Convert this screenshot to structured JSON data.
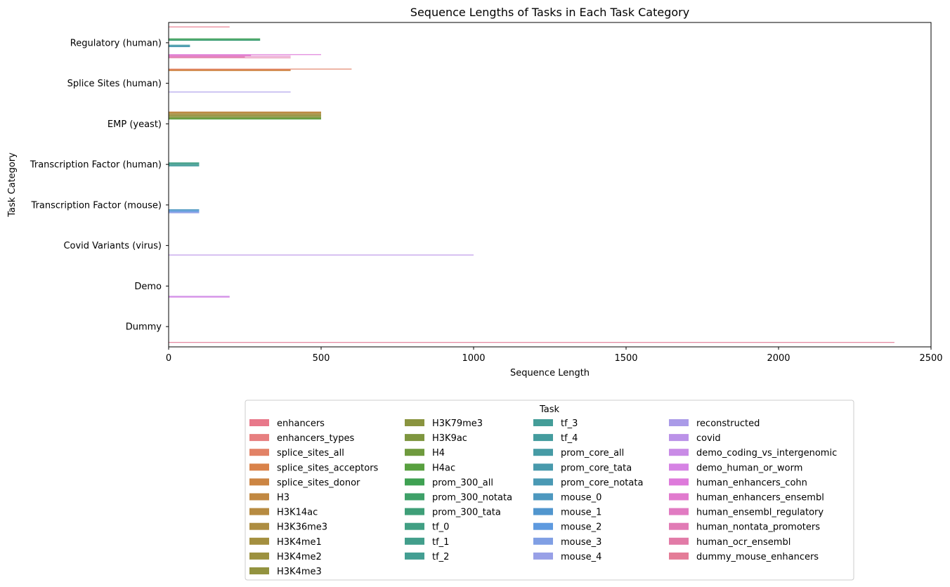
{
  "chart_data": {
    "type": "bar",
    "orientation": "horizontal",
    "title": "Sequence Lengths of Tasks in Each Task Category",
    "xlabel": "Sequence Length",
    "ylabel": "Task Category",
    "xlim": [
      0,
      2500
    ],
    "xticks": [
      0,
      500,
      1000,
      1500,
      2000,
      2500
    ],
    "grid": false,
    "legend_placement": "below",
    "legend_title": "Task",
    "categories": [
      "Regulatory (human)",
      "Splice Sites (human)",
      "EMP (yeast)",
      "Transcription Factor (human)",
      "Transcription Factor (mouse)",
      "Covid Variants (virus)",
      "Demo",
      "Dummy"
    ],
    "series": [
      {
        "name": "enhancers",
        "color": "#e8788a",
        "values": [
          200,
          null,
          null,
          null,
          null,
          null,
          null,
          null
        ]
      },
      {
        "name": "enhancers_types",
        "color": "#e77f80",
        "values": [
          null,
          null,
          null,
          null,
          null,
          null,
          null,
          null
        ]
      },
      {
        "name": "splice_sites_all",
        "color": "#e28266",
        "values": [
          null,
          600,
          null,
          null,
          null,
          null,
          null,
          null
        ]
      },
      {
        "name": "splice_sites_acceptors",
        "color": "#d9824a",
        "values": [
          null,
          400,
          null,
          null,
          null,
          null,
          null,
          null
        ]
      },
      {
        "name": "splice_sites_donor",
        "color": "#cc8543",
        "values": [
          null,
          400,
          null,
          null,
          null,
          null,
          null,
          null
        ]
      },
      {
        "name": "H3",
        "color": "#c18841",
        "values": [
          null,
          null,
          500,
          null,
          null,
          null,
          null,
          null
        ]
      },
      {
        "name": "H3K14ac",
        "color": "#b78b41",
        "values": [
          null,
          null,
          500,
          null,
          null,
          null,
          null,
          null
        ]
      },
      {
        "name": "H3K36me3",
        "color": "#ad8d41",
        "values": [
          null,
          null,
          500,
          null,
          null,
          null,
          null,
          null
        ]
      },
      {
        "name": "H3K4me1",
        "color": "#a48f3f",
        "values": [
          null,
          null,
          500,
          null,
          null,
          null,
          null,
          null
        ]
      },
      {
        "name": "H3K4me2",
        "color": "#9c913f",
        "values": [
          null,
          null,
          500,
          null,
          null,
          null,
          null,
          null
        ]
      },
      {
        "name": "H3K4me3",
        "color": "#93933f",
        "values": [
          null,
          null,
          500,
          null,
          null,
          null,
          null,
          null
        ]
      },
      {
        "name": "H3K79me3",
        "color": "#8a943f",
        "values": [
          null,
          null,
          500,
          null,
          null,
          null,
          null,
          null
        ]
      },
      {
        "name": "H3K9ac",
        "color": "#7e963f",
        "values": [
          null,
          null,
          500,
          null,
          null,
          null,
          null,
          null
        ]
      },
      {
        "name": "H4",
        "color": "#6f9a3e",
        "values": [
          null,
          null,
          500,
          null,
          null,
          null,
          null,
          null
        ]
      },
      {
        "name": "H4ac",
        "color": "#58a03f",
        "values": [
          null,
          null,
          500,
          null,
          null,
          null,
          null,
          null
        ]
      },
      {
        "name": "prom_300_all",
        "color": "#3fa152",
        "values": [
          300,
          null,
          null,
          null,
          null,
          null,
          null,
          null
        ]
      },
      {
        "name": "prom_300_notata",
        "color": "#3ea068",
        "values": [
          300,
          null,
          null,
          null,
          null,
          null,
          null,
          null
        ]
      },
      {
        "name": "prom_300_tata",
        "color": "#3f9f78",
        "values": [
          300,
          null,
          null,
          null,
          null,
          null,
          null,
          null
        ]
      },
      {
        "name": "tf_0",
        "color": "#419f83",
        "values": [
          null,
          null,
          null,
          100,
          null,
          null,
          null,
          null
        ]
      },
      {
        "name": "tf_1",
        "color": "#429e8b",
        "values": [
          null,
          null,
          null,
          100,
          null,
          null,
          null,
          null
        ]
      },
      {
        "name": "tf_2",
        "color": "#439e92",
        "values": [
          null,
          null,
          null,
          100,
          null,
          null,
          null,
          null
        ]
      },
      {
        "name": "tf_3",
        "color": "#449d98",
        "values": [
          null,
          null,
          null,
          100,
          null,
          null,
          null,
          null
        ]
      },
      {
        "name": "tf_4",
        "color": "#449c9e",
        "values": [
          null,
          null,
          null,
          100,
          null,
          null,
          null,
          null
        ]
      },
      {
        "name": "prom_core_all",
        "color": "#469ba5",
        "values": [
          70,
          null,
          null,
          null,
          null,
          null,
          null,
          null
        ]
      },
      {
        "name": "prom_core_tata",
        "color": "#489aac",
        "values": [
          70,
          null,
          null,
          null,
          null,
          null,
          null,
          null
        ]
      },
      {
        "name": "prom_core_notata",
        "color": "#4a99b4",
        "values": [
          70,
          null,
          null,
          null,
          null,
          null,
          null,
          null
        ]
      },
      {
        "name": "mouse_0",
        "color": "#4d98bf",
        "values": [
          null,
          null,
          null,
          null,
          100,
          null,
          null,
          null
        ]
      },
      {
        "name": "mouse_1",
        "color": "#5196ce",
        "values": [
          null,
          null,
          null,
          null,
          100,
          null,
          null,
          null
        ]
      },
      {
        "name": "mouse_2",
        "color": "#5e9adf",
        "values": [
          null,
          null,
          null,
          null,
          100,
          null,
          null,
          null
        ]
      },
      {
        "name": "mouse_3",
        "color": "#809fe4",
        "values": [
          null,
          null,
          null,
          null,
          100,
          null,
          null,
          null
        ]
      },
      {
        "name": "mouse_4",
        "color": "#98a0e7",
        "values": [
          null,
          null,
          null,
          null,
          100,
          null,
          null,
          null
        ]
      },
      {
        "name": "reconstructed",
        "color": "#aa9be8",
        "values": [
          null,
          400,
          null,
          null,
          null,
          null,
          null,
          null
        ]
      },
      {
        "name": "covid",
        "color": "#bb92e8",
        "values": [
          null,
          null,
          null,
          null,
          null,
          1000,
          null,
          null
        ]
      },
      {
        "name": "demo_coding_vs_intergenomic",
        "color": "#c98be6",
        "values": [
          null,
          null,
          null,
          null,
          null,
          null,
          200,
          null
        ]
      },
      {
        "name": "demo_human_or_worm",
        "color": "#d683e4",
        "values": [
          null,
          null,
          null,
          null,
          null,
          null,
          200,
          null
        ]
      },
      {
        "name": "human_enhancers_cohn",
        "color": "#de7adb",
        "values": [
          500,
          null,
          null,
          null,
          null,
          null,
          null,
          null
        ]
      },
      {
        "name": "human_enhancers_ensembl",
        "color": "#e17ace",
        "values": [
          270,
          null,
          null,
          null,
          null,
          null,
          null,
          null
        ]
      },
      {
        "name": "human_ensembl_regulatory",
        "color": "#e17bc2",
        "values": [
          400,
          null,
          null,
          null,
          null,
          null,
          null,
          null
        ]
      },
      {
        "name": "human_nontata_promoters",
        "color": "#e17bb5",
        "values": [
          250,
          null,
          null,
          null,
          null,
          null,
          null,
          null
        ]
      },
      {
        "name": "human_ocr_ensembl",
        "color": "#e27ba7",
        "values": [
          400,
          null,
          null,
          null,
          null,
          null,
          null,
          null
        ]
      },
      {
        "name": "dummy_mouse_enhancers",
        "color": "#e47c97",
        "values": [
          null,
          null,
          null,
          null,
          null,
          null,
          null,
          2380
        ]
      }
    ]
  }
}
